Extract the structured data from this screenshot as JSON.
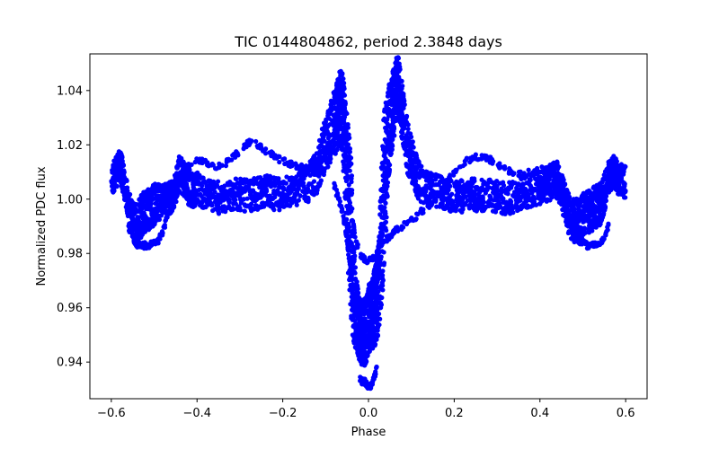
{
  "chart_data": {
    "type": "scatter",
    "title": "TIC 0144804862, period 2.3848 days",
    "xlabel": "Phase",
    "ylabel": "Normalized PDC flux",
    "xlim": [
      -0.65,
      0.65
    ],
    "ylim": [
      0.9265,
      1.0535
    ],
    "xticks": [
      -0.6,
      -0.4,
      -0.2,
      0.0,
      0.2,
      0.4,
      0.6
    ],
    "xtick_labels": [
      "−0.6",
      "−0.4",
      "−0.2",
      "0.0",
      "0.2",
      "0.4",
      "0.6"
    ],
    "yticks": [
      0.94,
      0.96,
      0.98,
      1.0,
      1.02,
      1.04
    ],
    "ytick_labels": [
      "0.94",
      "0.96",
      "0.98",
      "1.00",
      "1.02",
      "1.04"
    ],
    "grid": false,
    "marker_color": "#0000ff",
    "series": [
      {
        "x": [
          -0.6,
          -0.59,
          -0.58,
          -0.575,
          -0.57,
          -0.56,
          -0.55,
          -0.54,
          -0.53,
          -0.52,
          -0.51,
          -0.5,
          -0.49,
          -0.48,
          -0.47,
          -0.46,
          -0.45,
          -0.44,
          -0.43,
          -0.42,
          -0.41,
          -0.4,
          -0.38,
          -0.36,
          -0.34,
          -0.32,
          -0.3,
          -0.28,
          -0.26,
          -0.24,
          -0.22,
          -0.2,
          -0.18,
          -0.16,
          -0.14,
          -0.12,
          -0.11,
          -0.1,
          -0.09,
          -0.08,
          -0.075,
          -0.07,
          -0.065,
          -0.06,
          -0.055,
          -0.05,
          -0.045,
          -0.04,
          -0.035,
          -0.03,
          -0.025,
          -0.02,
          -0.015,
          -0.01,
          -0.005,
          0.0,
          0.005,
          0.01,
          0.015,
          0.02,
          0.025,
          0.03,
          0.035,
          0.04,
          0.045,
          0.05,
          0.055,
          0.06,
          0.065,
          0.07,
          0.075,
          0.08,
          0.09,
          0.1,
          0.11,
          0.12,
          0.14,
          0.16,
          0.18,
          0.2,
          0.22,
          0.24,
          0.26,
          0.28,
          0.3,
          0.32,
          0.34,
          0.36,
          0.38,
          0.4,
          0.41,
          0.42,
          0.43,
          0.44,
          0.45,
          0.46,
          0.47,
          0.48,
          0.49,
          0.5,
          0.51,
          0.52,
          0.53,
          0.54,
          0.55,
          0.56,
          0.57,
          0.575,
          0.58,
          0.59,
          0.6
        ],
        "y": [
          1.006,
          1.01,
          1.012,
          1.01,
          1.006,
          0.998,
          0.992,
          0.99,
          0.994,
          0.996,
          0.997,
          0.998,
          0.999,
          1.0,
          1.0,
          1.001,
          1.004,
          1.01,
          1.008,
          1.005,
          1.003,
          1.004,
          1.002,
          1.001,
          1.0,
          1.001,
          1.002,
          1.001,
          1.002,
          1.003,
          1.002,
          1.002,
          1.003,
          1.004,
          1.006,
          1.01,
          1.016,
          1.02,
          1.024,
          1.028,
          1.03,
          1.032,
          1.034,
          1.03,
          1.02,
          1.005,
          0.995,
          0.985,
          0.97,
          0.96,
          0.955,
          0.952,
          0.95,
          0.95,
          0.952,
          0.956,
          0.956,
          0.958,
          0.96,
          0.962,
          0.97,
          0.985,
          1.0,
          1.01,
          1.02,
          1.028,
          1.032,
          1.036,
          1.04,
          1.042,
          1.036,
          1.03,
          1.02,
          1.014,
          1.01,
          1.006,
          1.004,
          1.003,
          1.002,
          1.001,
          1.001,
          1.002,
          1.001,
          1.002,
          1.001,
          1.0,
          1.001,
          1.002,
          1.003,
          1.004,
          1.005,
          1.006,
          1.007,
          1.007,
          1.003,
          0.998,
          0.993,
          0.992,
          0.993,
          0.994,
          0.995,
          0.996,
          0.997,
          0.998,
          1.002,
          1.008,
          1.01,
          1.01,
          1.008,
          1.007,
          1.006
        ],
        "spread": [
          0.005,
          0.006,
          0.006,
          0.006,
          0.006,
          0.006,
          0.007,
          0.008,
          0.008,
          0.008,
          0.008,
          0.008,
          0.007,
          0.006,
          0.006,
          0.006,
          0.006,
          0.007,
          0.007,
          0.007,
          0.006,
          0.006,
          0.006,
          0.006,
          0.006,
          0.006,
          0.006,
          0.006,
          0.006,
          0.006,
          0.006,
          0.006,
          0.006,
          0.006,
          0.007,
          0.008,
          0.009,
          0.01,
          0.011,
          0.012,
          0.013,
          0.014,
          0.014,
          0.016,
          0.02,
          0.026,
          0.03,
          0.032,
          0.022,
          0.016,
          0.013,
          0.012,
          0.012,
          0.012,
          0.012,
          0.013,
          0.013,
          0.013,
          0.014,
          0.014,
          0.018,
          0.026,
          0.03,
          0.026,
          0.02,
          0.016,
          0.014,
          0.013,
          0.012,
          0.011,
          0.011,
          0.011,
          0.01,
          0.009,
          0.008,
          0.007,
          0.006,
          0.006,
          0.006,
          0.006,
          0.006,
          0.006,
          0.006,
          0.006,
          0.006,
          0.006,
          0.006,
          0.006,
          0.006,
          0.006,
          0.006,
          0.007,
          0.007,
          0.007,
          0.007,
          0.007,
          0.008,
          0.008,
          0.008,
          0.008,
          0.008,
          0.008,
          0.008,
          0.008,
          0.007,
          0.006,
          0.006,
          0.006,
          0.006,
          0.006,
          0.006
        ]
      }
    ],
    "branches": [
      {
        "x": [
          -0.56,
          -0.55,
          -0.54,
          -0.53,
          -0.52,
          -0.51,
          -0.5,
          -0.49,
          -0.48,
          -0.47,
          -0.46
        ],
        "y": [
          0.99,
          0.986,
          0.983,
          0.983,
          0.983,
          0.983,
          0.984,
          0.985,
          0.988,
          0.993,
          0.998
        ]
      },
      {
        "x": [
          -0.44,
          -0.42,
          -0.4,
          -0.38,
          -0.36,
          -0.34,
          -0.32,
          -0.3,
          -0.28,
          -0.26,
          -0.24,
          -0.22,
          -0.2,
          -0.18,
          -0.16,
          -0.14,
          -0.12,
          -0.1
        ],
        "y": [
          1.008,
          1.012,
          1.014,
          1.014,
          1.012,
          1.012,
          1.015,
          1.018,
          1.021,
          1.02,
          1.018,
          1.016,
          1.014,
          1.013,
          1.012,
          1.011,
          1.013,
          1.016
        ]
      },
      {
        "x": [
          -0.08,
          -0.07,
          -0.06,
          -0.055,
          -0.05,
          -0.045,
          -0.04,
          -0.035,
          -0.03,
          -0.025,
          -0.02,
          -0.015,
          -0.01,
          -0.005,
          0.0,
          0.005,
          0.01,
          0.015,
          0.02,
          0.025,
          0.03
        ],
        "y": [
          1.005,
          1.0,
          0.995,
          0.99,
          0.985,
          0.978,
          0.972,
          0.966,
          0.962,
          0.958,
          0.958,
          0.96,
          0.962,
          0.964,
          0.966,
          0.968,
          0.97,
          0.974,
          0.978,
          0.984,
          0.99
        ]
      },
      {
        "x": [
          -0.02,
          -0.015,
          -0.01,
          -0.005,
          0.0,
          0.005,
          0.01,
          0.015,
          0.02
        ],
        "y": [
          0.934,
          0.933,
          0.933,
          0.932,
          0.931,
          0.931,
          0.933,
          0.935,
          0.938
        ]
      },
      {
        "x": [
          -0.035,
          -0.03,
          -0.02,
          -0.01,
          0.0,
          0.01,
          0.02,
          0.03,
          0.035
        ],
        "y": [
          0.99,
          0.985,
          0.98,
          0.978,
          0.977,
          0.978,
          0.98,
          0.985,
          0.99
        ]
      },
      {
        "x": [
          0.04,
          0.05,
          0.06,
          0.08,
          0.1,
          0.12,
          0.14,
          0.16,
          0.18,
          0.2,
          0.22,
          0.24,
          0.26,
          0.28,
          0.3,
          0.32,
          0.34,
          0.36,
          0.38,
          0.4,
          0.42,
          0.44
        ],
        "y": [
          0.985,
          0.986,
          0.988,
          0.99,
          0.992,
          0.995,
          0.997,
          1.0,
          1.006,
          1.01,
          1.013,
          1.015,
          1.016,
          1.015,
          1.013,
          1.011,
          1.01,
          1.009,
          1.01,
          1.011,
          1.01,
          1.008
        ]
      },
      {
        "x": [
          0.46,
          0.47,
          0.48,
          0.49,
          0.5,
          0.51,
          0.52,
          0.53,
          0.54,
          0.55,
          0.56
        ],
        "y": [
          0.998,
          0.993,
          0.988,
          0.985,
          0.984,
          0.983,
          0.983,
          0.983,
          0.983,
          0.986,
          0.99
        ]
      }
    ]
  }
}
